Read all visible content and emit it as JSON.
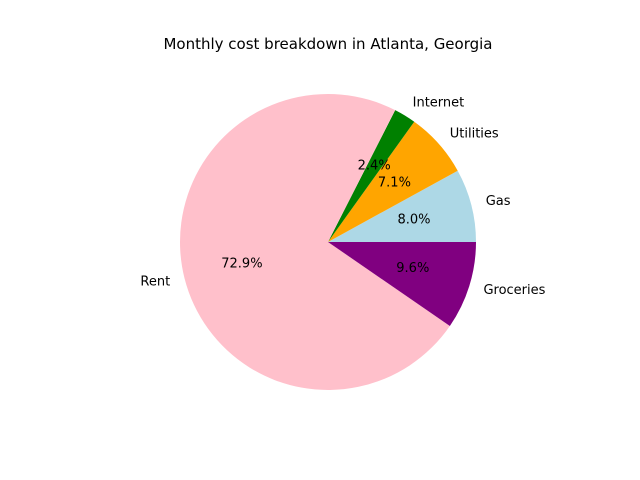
{
  "chart_data": {
    "type": "pie",
    "title": "Monthly cost breakdown in Atlanta, Georgia",
    "slices": [
      {
        "label": "Gas",
        "value": 8.0,
        "pct_label": "8.0%",
        "color": "#add8e6"
      },
      {
        "label": "Utilities",
        "value": 7.1,
        "pct_label": "7.1%",
        "color": "#ffa500"
      },
      {
        "label": "Internet",
        "value": 2.4,
        "pct_label": "2.4%",
        "color": "#008000"
      },
      {
        "label": "Rent",
        "value": 72.9,
        "pct_label": "72.9%",
        "color": "#ffc0cb"
      },
      {
        "label": "Groceries",
        "value": 9.6,
        "pct_label": "9.6%",
        "color": "#800080"
      }
    ],
    "start_angle_deg": 0,
    "direction": "counterclockwise"
  }
}
